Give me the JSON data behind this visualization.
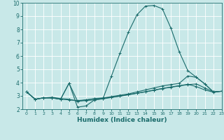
{
  "xlabel": "Humidex (Indice chaleur)",
  "xlim": [
    -0.5,
    23
  ],
  "ylim": [
    2,
    10
  ],
  "yticks": [
    2,
    3,
    4,
    5,
    6,
    7,
    8,
    9,
    10
  ],
  "xticks": [
    0,
    1,
    2,
    3,
    4,
    5,
    6,
    7,
    8,
    9,
    10,
    11,
    12,
    13,
    14,
    15,
    16,
    17,
    18,
    19,
    20,
    21,
    22,
    23
  ],
  "bg_color": "#c8e8e8",
  "line_color": "#1a6b6b",
  "grid_color": "#ffffff",
  "lines": [
    {
      "x": [
        0,
        1,
        2,
        3,
        4,
        5,
        6,
        7,
        8,
        9,
        10,
        11,
        12,
        13,
        14,
        15,
        16,
        17,
        18,
        19,
        20,
        21,
        22,
        23
      ],
      "y": [
        3.3,
        2.75,
        2.85,
        2.85,
        2.75,
        3.95,
        2.15,
        2.25,
        2.7,
        2.8,
        4.5,
        6.2,
        7.8,
        9.1,
        9.75,
        9.8,
        9.55,
        8.1,
        6.3,
        4.9,
        4.4,
        3.9,
        3.3,
        3.35
      ]
    },
    {
      "x": [
        0,
        1,
        2,
        3,
        4,
        5,
        6,
        7,
        8,
        9,
        10,
        11,
        12,
        13,
        14,
        15,
        16,
        17,
        18,
        19,
        20,
        21,
        22,
        23
      ],
      "y": [
        3.3,
        2.75,
        2.85,
        2.9,
        2.8,
        2.75,
        2.6,
        2.7,
        2.8,
        2.85,
        2.95,
        3.05,
        3.15,
        3.3,
        3.45,
        3.6,
        3.75,
        3.85,
        3.95,
        4.5,
        4.4,
        3.9,
        3.3,
        3.35
      ]
    },
    {
      "x": [
        0,
        1,
        2,
        3,
        4,
        5,
        6,
        7,
        8,
        9,
        10,
        11,
        12,
        13,
        14,
        15,
        16,
        17,
        18,
        19,
        20,
        21,
        22,
        23
      ],
      "y": [
        3.3,
        2.75,
        2.85,
        2.85,
        2.75,
        2.7,
        2.65,
        2.7,
        2.78,
        2.82,
        2.9,
        3.0,
        3.1,
        3.2,
        3.3,
        3.42,
        3.55,
        3.65,
        3.75,
        3.85,
        3.9,
        3.6,
        3.3,
        3.35
      ]
    },
    {
      "x": [
        0,
        1,
        2,
        3,
        4,
        5,
        6,
        7,
        8,
        9,
        10,
        11,
        12,
        13,
        14,
        15,
        16,
        17,
        18,
        19,
        20,
        21,
        22,
        23
      ],
      "y": [
        3.3,
        2.75,
        2.85,
        2.85,
        2.75,
        3.95,
        2.6,
        2.65,
        2.7,
        2.78,
        2.88,
        2.98,
        3.08,
        3.2,
        3.32,
        3.44,
        3.56,
        3.67,
        3.77,
        3.87,
        3.7,
        3.45,
        3.28,
        3.35
      ]
    }
  ]
}
